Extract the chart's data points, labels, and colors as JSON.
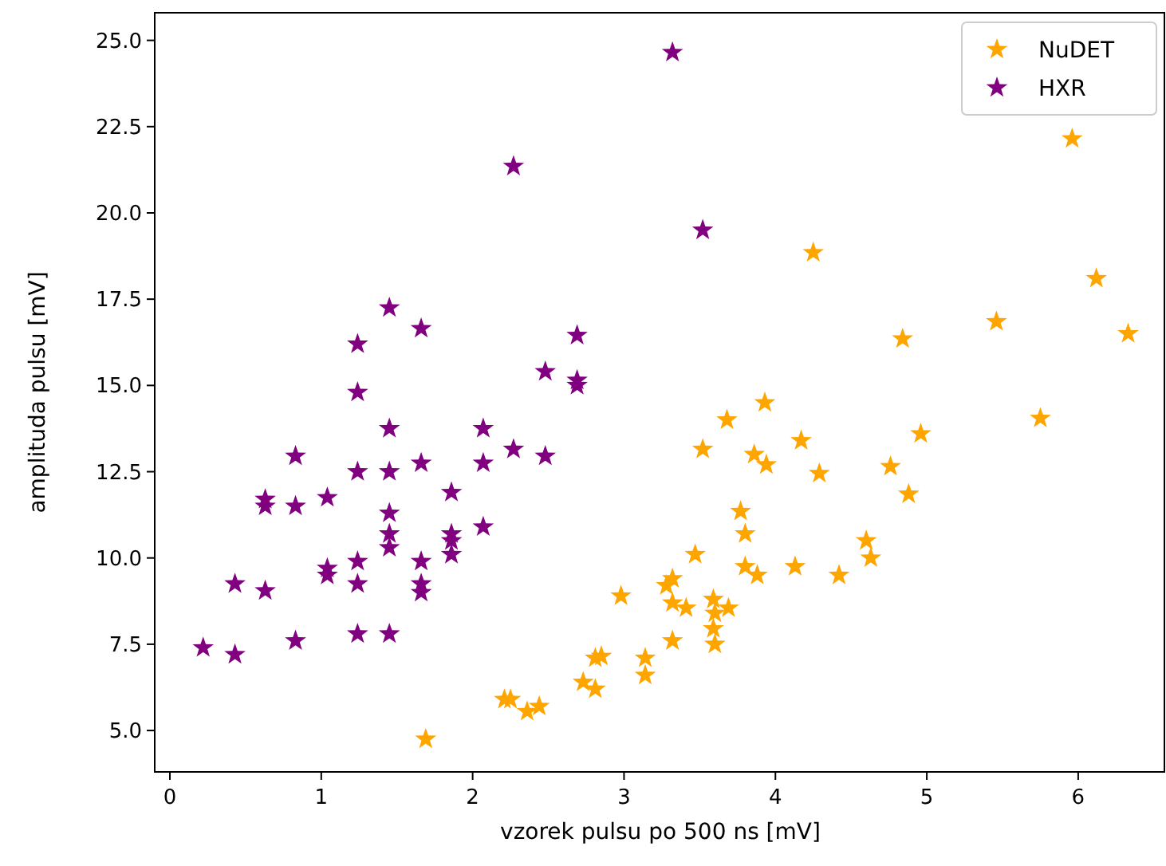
{
  "chart_data": {
    "type": "scatter",
    "xlabel": "vzorek pulsu po 500 ns [mV]",
    "ylabel": "amplituda pulsu [mV]",
    "xlim": [
      -0.1,
      6.58
    ],
    "ylim": [
      3.8,
      25.8
    ],
    "xticks": [
      0,
      1,
      2,
      3,
      4,
      5,
      6
    ],
    "yticks": [
      {
        "value": 5,
        "label": "5.0"
      },
      {
        "value": 7.5,
        "label": "7.5"
      },
      {
        "value": 10,
        "label": "10.0"
      },
      {
        "value": 12.5,
        "label": "12.5"
      },
      {
        "value": 15,
        "label": "15.0"
      },
      {
        "value": 17.5,
        "label": "17.5"
      },
      {
        "value": 20,
        "label": "20.0"
      },
      {
        "value": 22.5,
        "label": "22.5"
      },
      {
        "value": 25,
        "label": "25.0"
      }
    ],
    "legend": "top right",
    "marker": "star",
    "grid": false,
    "series": [
      {
        "name": "NuDET",
        "color": "#ffa500",
        "x": [
          1.69,
          2.21,
          2.25,
          2.36,
          2.44,
          2.73,
          2.81,
          2.85,
          2.81,
          2.98,
          3.14,
          3.14,
          3.28,
          3.32,
          3.32,
          3.32,
          3.41,
          3.47,
          3.52,
          3.59,
          3.6,
          3.59,
          3.6,
          3.68,
          3.69,
          3.77,
          3.8,
          3.8,
          3.86,
          3.88,
          3.93,
          3.94,
          4.13,
          4.17,
          4.25,
          4.29,
          4.42,
          4.6,
          4.63,
          4.76,
          4.84,
          4.88,
          4.96,
          5.46,
          5.75,
          5.96,
          6.12,
          6.33
        ],
        "values": [
          4.75,
          5.9,
          5.9,
          5.55,
          5.7,
          6.4,
          7.1,
          7.15,
          6.2,
          8.9,
          7.1,
          6.6,
          9.2,
          9.4,
          8.7,
          7.6,
          8.55,
          10.1,
          13.15,
          8.8,
          8.4,
          7.95,
          7.5,
          14.0,
          8.55,
          11.35,
          10.7,
          9.75,
          13.0,
          9.5,
          14.5,
          12.7,
          9.75,
          13.4,
          18.85,
          12.45,
          9.5,
          10.5,
          10.0,
          12.65,
          16.35,
          11.85,
          13.6,
          16.85,
          14.05,
          22.15,
          18.1,
          16.5
        ]
      },
      {
        "name": "HXR",
        "color": "#800080",
        "x": [
          0.22,
          0.43,
          0.43,
          0.63,
          0.63,
          0.63,
          0.83,
          0.83,
          0.83,
          1.04,
          1.04,
          1.04,
          1.24,
          1.24,
          1.24,
          1.24,
          1.24,
          1.24,
          1.45,
          1.45,
          1.45,
          1.45,
          1.45,
          1.45,
          1.45,
          1.66,
          1.66,
          1.66,
          1.66,
          1.66,
          1.86,
          1.86,
          1.86,
          1.86,
          2.07,
          2.07,
          2.07,
          2.27,
          2.27,
          2.48,
          2.48,
          2.69,
          2.69,
          2.69,
          3.32,
          3.52
        ],
        "values": [
          7.4,
          7.2,
          9.25,
          9.05,
          11.7,
          11.5,
          12.95,
          11.5,
          7.6,
          11.75,
          9.7,
          9.5,
          16.2,
          14.8,
          12.5,
          9.9,
          9.25,
          7.8,
          17.25,
          13.75,
          12.5,
          11.3,
          10.7,
          10.3,
          7.8,
          16.65,
          12.75,
          9.9,
          9.25,
          9.0,
          11.9,
          10.7,
          10.5,
          10.1,
          13.75,
          12.75,
          10.9,
          21.35,
          13.15,
          15.4,
          12.95,
          16.45,
          15.15,
          15.0,
          24.65,
          19.5
        ]
      }
    ]
  }
}
